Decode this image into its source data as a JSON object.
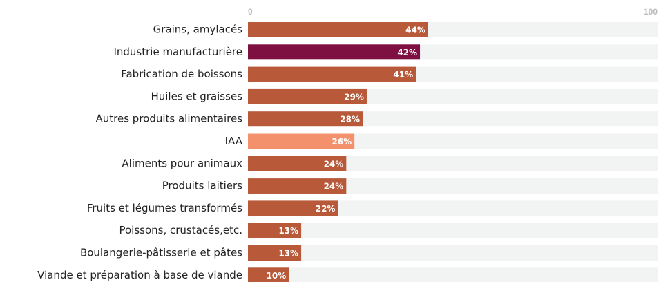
{
  "chart_data": {
    "type": "bar",
    "orientation": "horizontal",
    "categories": [
      "Grains, amylacés",
      "Industrie manufacturière",
      "Fabrication de boissons",
      "Huiles et graisses",
      "Autres produits alimentaires",
      "IAA",
      "Aliments pour animaux",
      "Produits laitiers",
      "Fruits et légumes transformés",
      "Poissons, crustacés,etc.",
      "Boulangerie-pâtisserie et pâtes",
      "Viande et préparation à base de viande"
    ],
    "values": [
      44,
      42,
      41,
      29,
      28,
      26,
      24,
      24,
      22,
      13,
      13,
      10
    ],
    "value_labels": [
      "44%",
      "42%",
      "41%",
      "29%",
      "28%",
      "26%",
      "24%",
      "24%",
      "22%",
      "13%",
      "13%",
      "10%"
    ],
    "colors": [
      "#b85a3a",
      "#7d1040",
      "#b85a3a",
      "#b85a3a",
      "#b85a3a",
      "#f2916b",
      "#b85a3a",
      "#b85a3a",
      "#b85a3a",
      "#b85a3a",
      "#b85a3a",
      "#b85a3a"
    ],
    "track_color": "#f1f4f3",
    "xlim": [
      0,
      100
    ],
    "xticks": [
      0,
      100
    ]
  }
}
